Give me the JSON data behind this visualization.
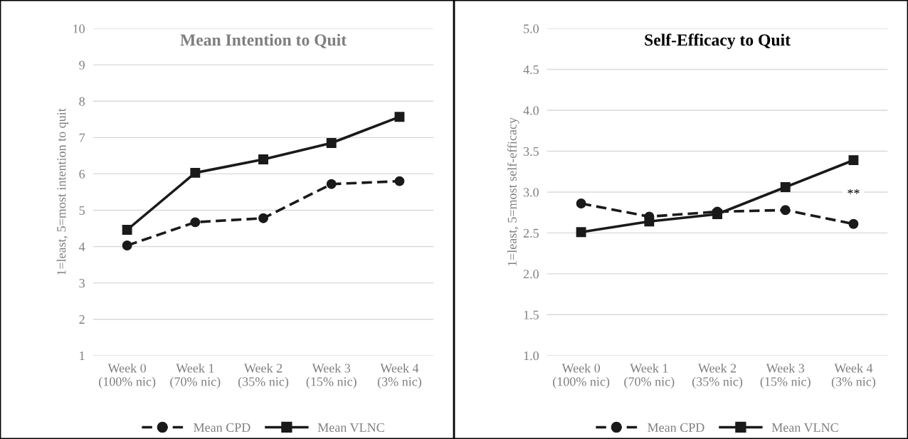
{
  "chart_data": [
    {
      "type": "line",
      "title": "Mean Intention to Quit",
      "ylabel": "1=least, 5=most intention to quit",
      "categories": [
        "Week 0\n(100% nic)",
        "Week 1\n(70% nic)",
        "Week 2\n(35% nic)",
        "Week 3\n(15% nic)",
        "Week 4\n(3% nic)"
      ],
      "series": [
        {
          "name": "Mean CPD",
          "color": "#1a1a1a",
          "marker": "circle",
          "line_style": "dashed",
          "values": [
            4.03,
            4.67,
            4.78,
            5.72,
            5.8
          ]
        },
        {
          "name": "Mean VLNC",
          "color": "#1a1a1a",
          "marker": "square",
          "line_style": "solid",
          "values": [
            4.46,
            6.03,
            6.4,
            6.85,
            7.57
          ]
        }
      ],
      "ylim": [
        1,
        10
      ],
      "yticks": [
        1,
        2,
        3,
        4,
        5,
        6,
        7,
        8,
        9,
        10
      ],
      "grid": "y",
      "legend": "bottom"
    },
    {
      "type": "line",
      "title": "Self-Efficacy to Quit",
      "ylabel": "1=least, 5=most self-efficacy",
      "categories": [
        "Week 0\n(100% nic)",
        "Week 1\n(70% nic)",
        "Week 2\n(35% nic)",
        "Week 3\n(15% nic)",
        "Week 4\n(3% nic)"
      ],
      "series": [
        {
          "name": "Mean CPD",
          "color": "#1a1a1a",
          "marker": "circle",
          "line_style": "dashed",
          "values": [
            2.86,
            2.7,
            2.76,
            2.78,
            2.61
          ]
        },
        {
          "name": "Mean VLNC",
          "color": "#1a1a1a",
          "marker": "square",
          "line_style": "solid",
          "values": [
            2.51,
            2.64,
            2.73,
            3.06,
            3.39
          ]
        }
      ],
      "annotations": [
        {
          "text": "**",
          "x": "Week 4\n(3% nic)",
          "y": 2.97
        }
      ],
      "ylim": [
        1,
        5
      ],
      "yticks": [
        {
          "value": 1,
          "label": "1.0"
        },
        {
          "value": 1.5,
          "label": "1.5"
        },
        {
          "value": 2,
          "label": "2.0"
        },
        {
          "value": 2.5,
          "label": "2.5"
        },
        {
          "value": 3,
          "label": "3.0"
        },
        {
          "value": 3.5,
          "label": "3.5"
        },
        {
          "value": 4,
          "label": "4.0"
        },
        {
          "value": 4.5,
          "label": "4.5"
        },
        {
          "value": 5,
          "label": "5.0"
        }
      ],
      "grid": "y",
      "legend": "bottom"
    }
  ]
}
